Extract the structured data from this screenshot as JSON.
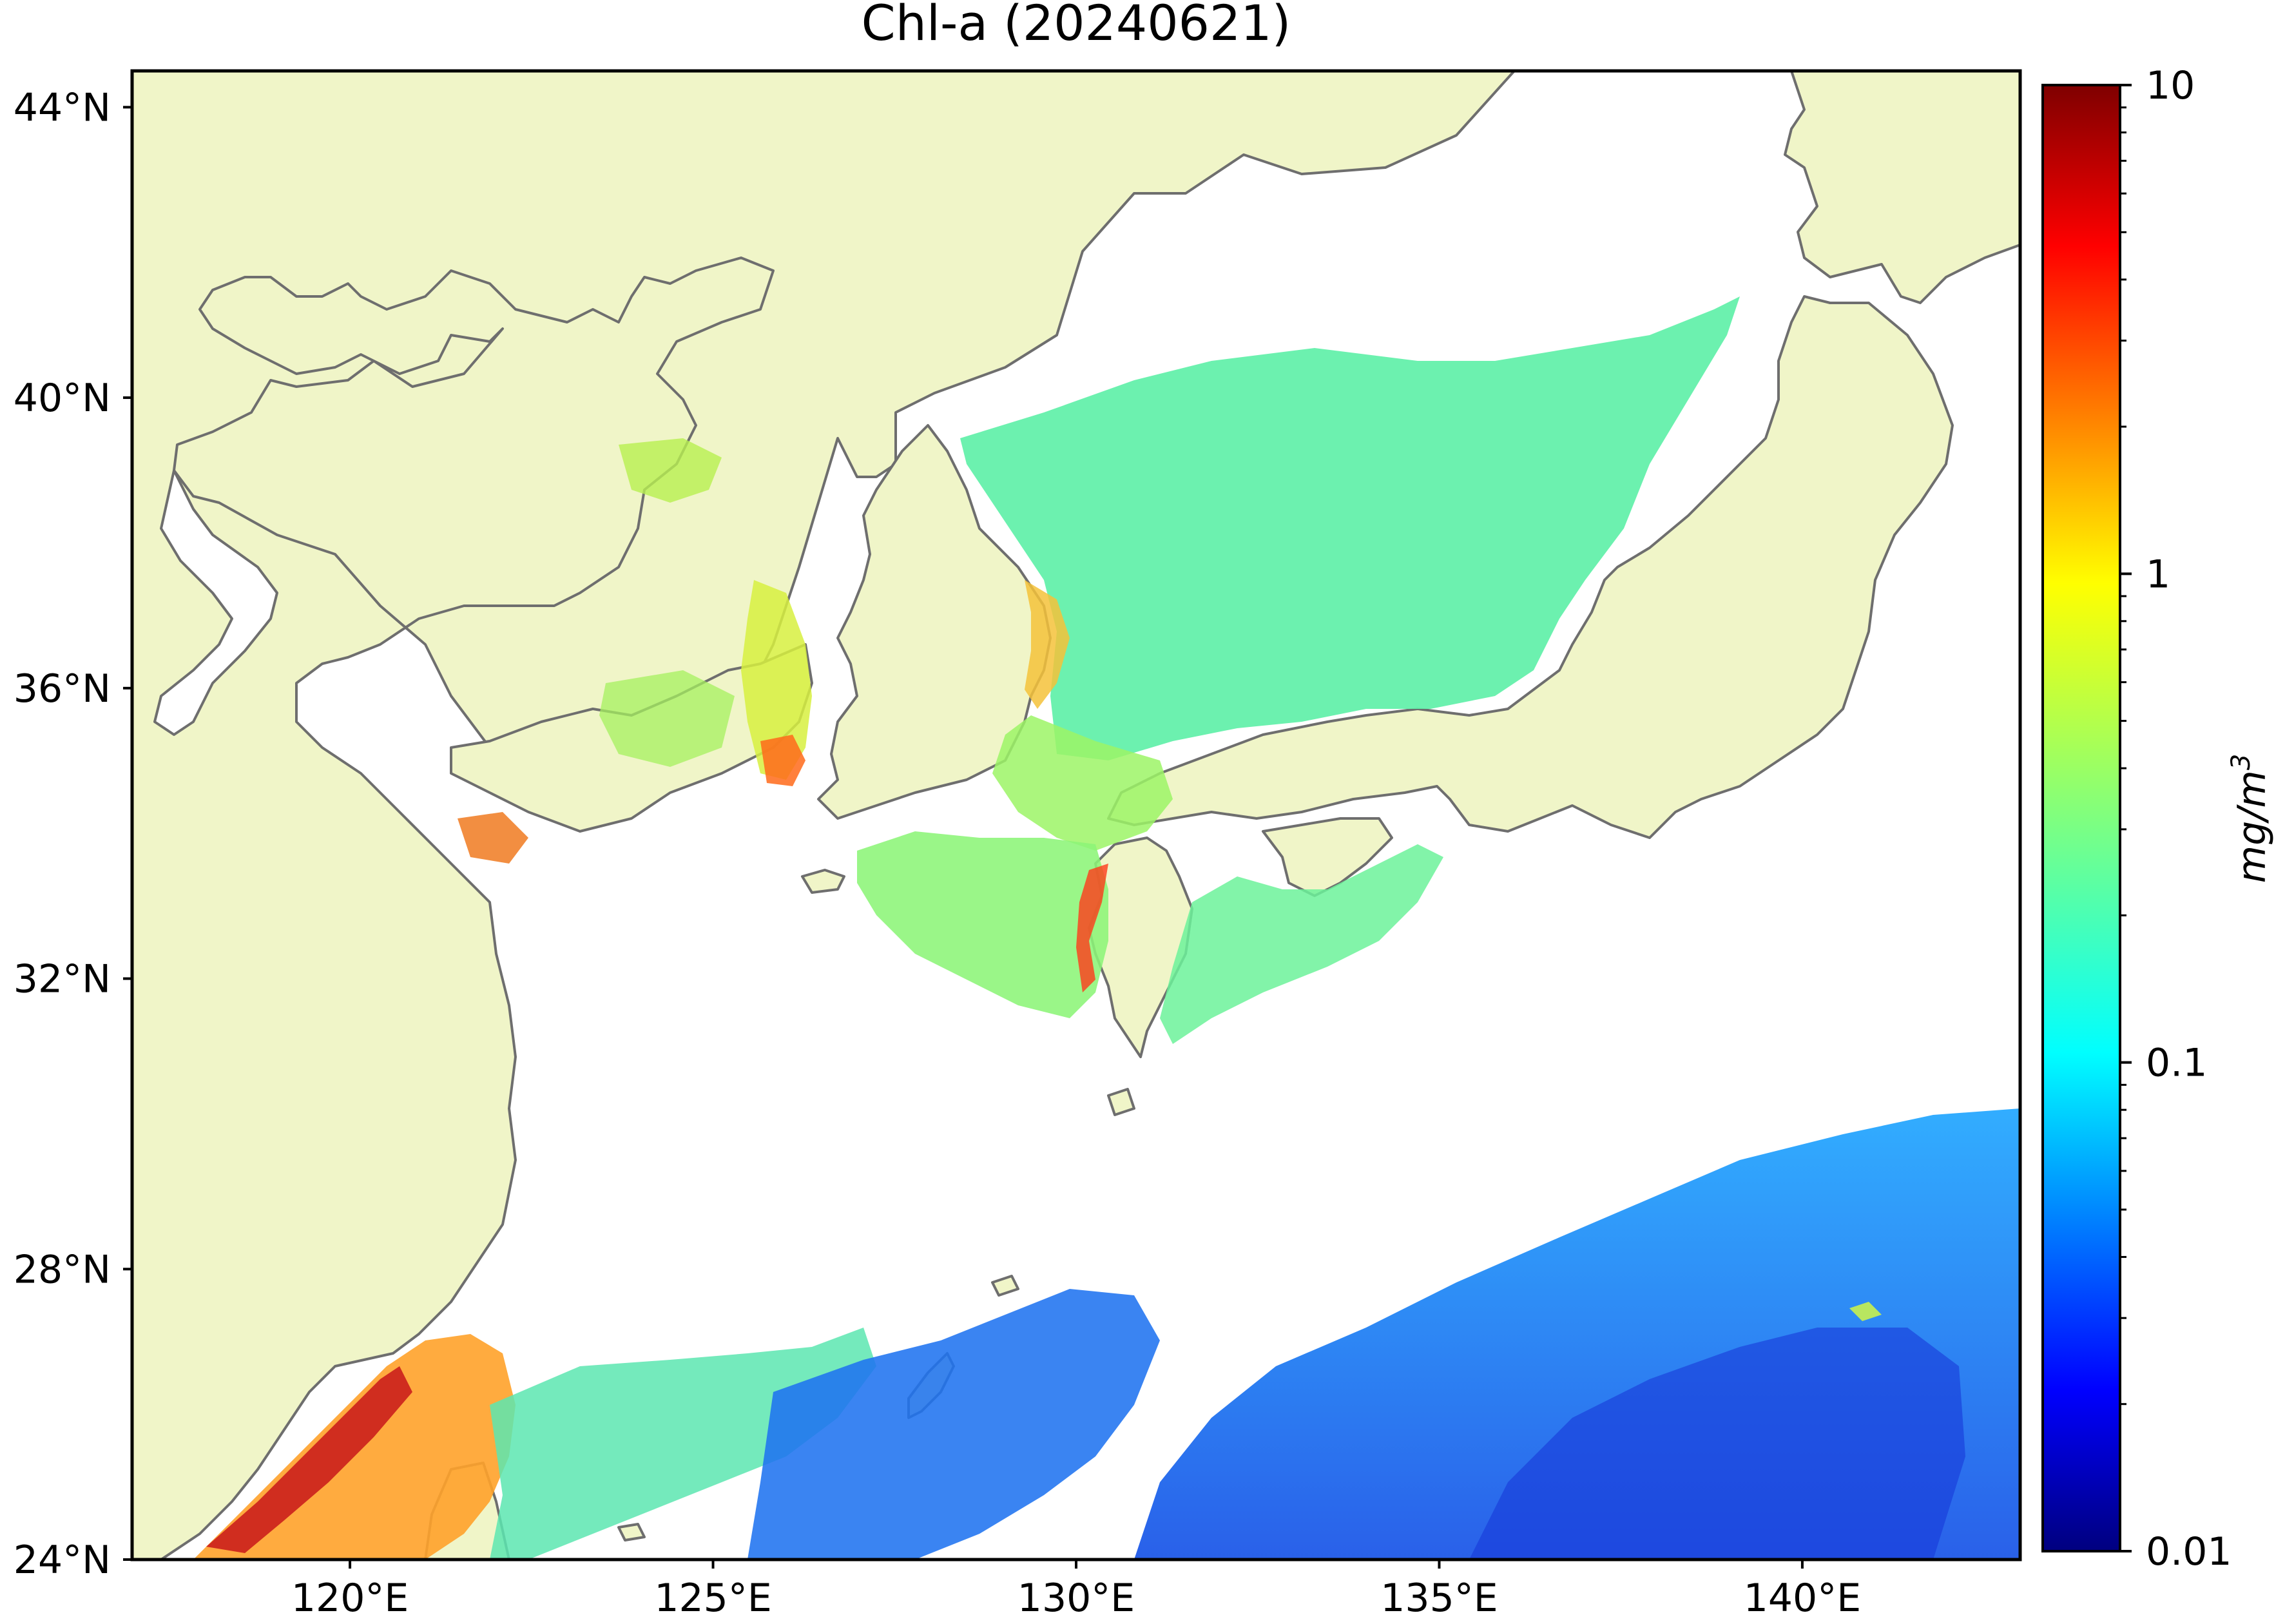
{
  "title": "Chl-a (20240621)",
  "colorbar": {
    "label": "mg/m",
    "label_superscript": "3",
    "scale": "log",
    "range": [
      0.01,
      10
    ],
    "major_ticks": [
      {
        "value": 10,
        "label": "10"
      },
      {
        "value": 1,
        "label": "1"
      },
      {
        "value": 0.1,
        "label": "0.1"
      },
      {
        "value": 0.01,
        "label": "0.01"
      }
    ],
    "colormap": [
      "#00007f",
      "#0000ff",
      "#007fff",
      "#00ffff",
      "#7fff7f",
      "#ffff00",
      "#ff7f00",
      "#ff0000",
      "#7f0000"
    ]
  },
  "map": {
    "land_color": "#f0f5c8",
    "ocean_no_data_color": "#ffffff",
    "coastline_color": "#6e6e6e",
    "lon_range": [
      117,
      143
    ],
    "lat_range": [
      24,
      44.5
    ],
    "lat_ticks": [
      {
        "value": 44,
        "label": "44°N"
      },
      {
        "value": 40,
        "label": "40°N"
      },
      {
        "value": 36,
        "label": "36°N"
      },
      {
        "value": 32,
        "label": "32°N"
      },
      {
        "value": 28,
        "label": "28°N"
      },
      {
        "value": 24,
        "label": "24°N"
      }
    ],
    "lon_ticks": [
      {
        "value": 120,
        "label": "120°E"
      },
      {
        "value": 125,
        "label": "125°E"
      },
      {
        "value": 130,
        "label": "130°E"
      },
      {
        "value": 135,
        "label": "135°E"
      },
      {
        "value": 140,
        "label": "140°E"
      }
    ]
  }
}
